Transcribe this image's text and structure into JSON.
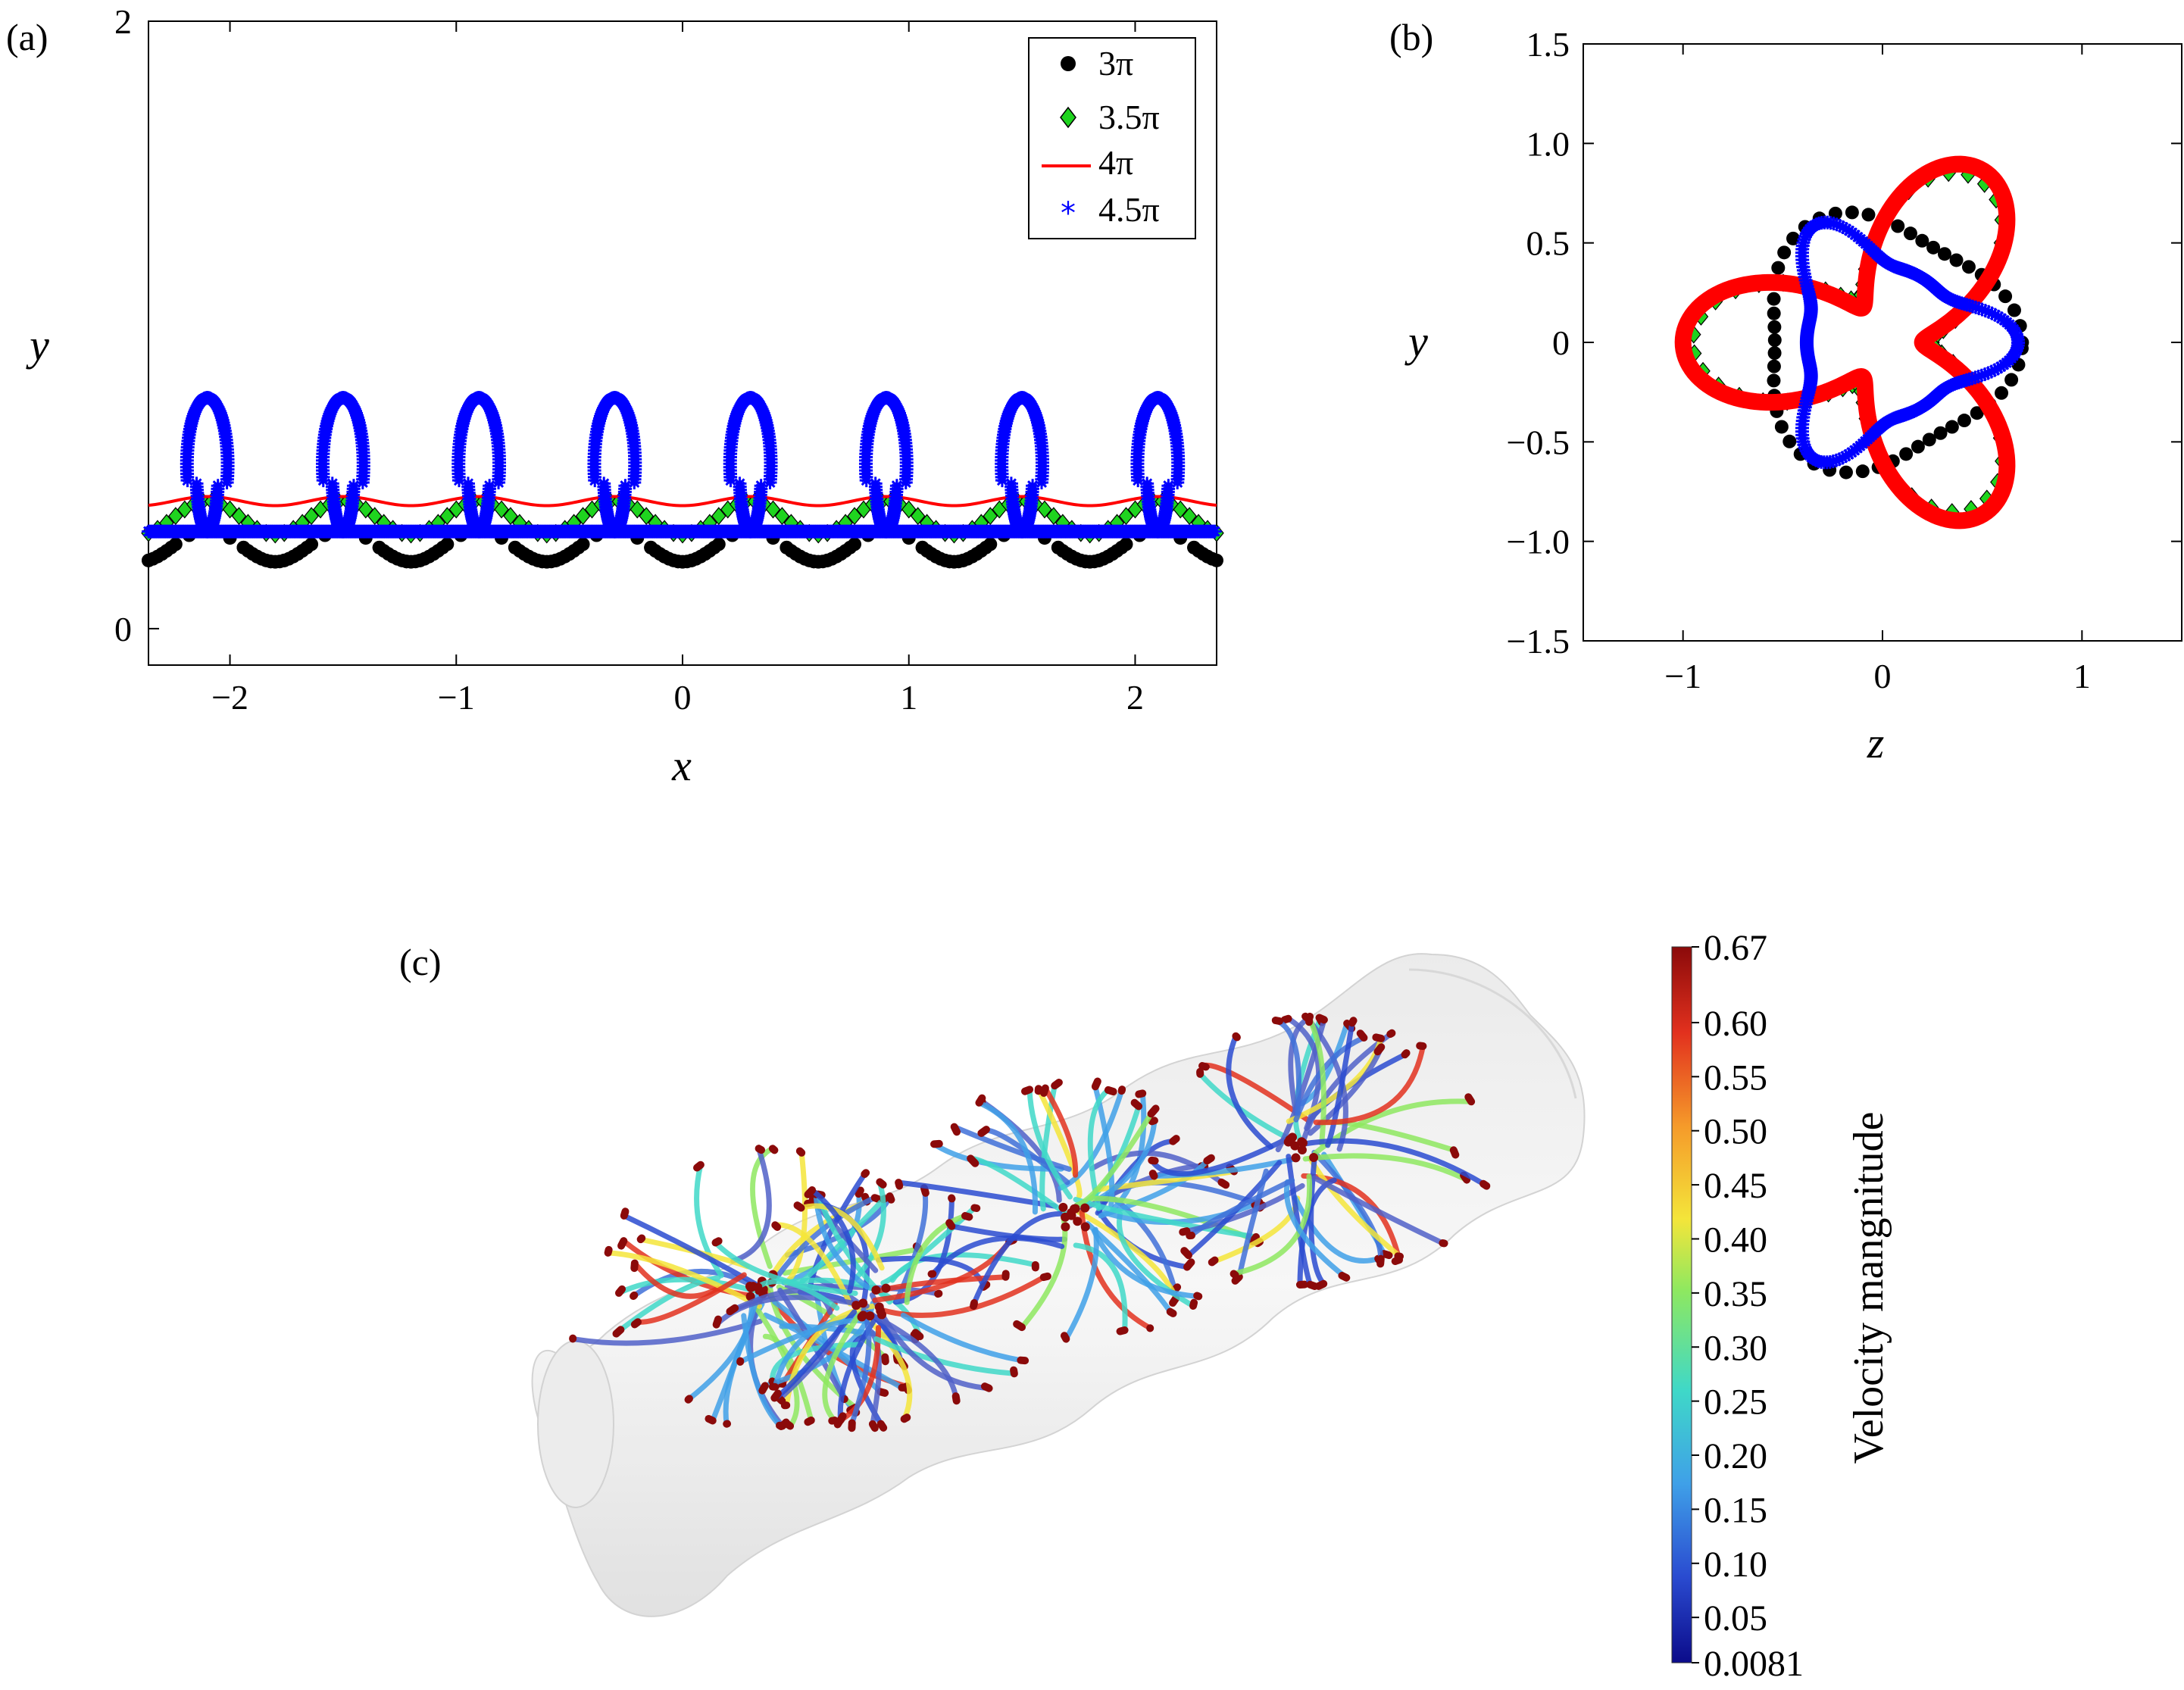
{
  "panels": {
    "a": {
      "label": "(a)"
    },
    "b": {
      "label": "(b)"
    },
    "c": {
      "label": "(c)"
    }
  },
  "chart_data": [
    {
      "id": "a",
      "type": "scatter",
      "title": "",
      "xlabel": "x",
      "ylabel": "y",
      "xlim": [
        -2.36,
        2.36
      ],
      "ylim": [
        -0.12,
        2.0
      ],
      "x_ticks": [
        -2,
        -1,
        0,
        1,
        2
      ],
      "x_tick_labels": [
        "−2",
        "−1",
        "0",
        "1",
        "2"
      ],
      "y_ticks": [
        0,
        2
      ],
      "y_tick_labels": [
        "0",
        "2"
      ],
      "grid": false,
      "legend_position": "top-right",
      "series": [
        {
          "name": "3π",
          "marker": "circle",
          "color": "#000000",
          "curve": "wave",
          "wavelength": 0.6,
          "base": 0.325,
          "amp_low": 0.22,
          "amp_high": 0.325
        },
        {
          "name": "3.5π",
          "marker": "diamond",
          "color": "#1fd41f",
          "curve": "wave",
          "wavelength": 0.6,
          "base": 0.36,
          "amp_low": 0.31,
          "amp_high": 0.42
        },
        {
          "name": "4π",
          "marker": "line",
          "color": "#ff0000",
          "curve": "wave",
          "wavelength": 0.6,
          "base": 0.42,
          "amp_low": 0.405,
          "amp_high": 0.435
        },
        {
          "name": "4.5π",
          "marker": "star",
          "color": "#0000ff",
          "curve": "loop",
          "wavelength": 0.6,
          "base": 0.32,
          "loop_top": 0.76,
          "loop_bottom": 0.48
        }
      ]
    },
    {
      "id": "b",
      "type": "scatter",
      "title": "",
      "xlabel": "z",
      "ylabel": "y",
      "xlim": [
        -1.5,
        1.5
      ],
      "ylim": [
        -1.5,
        1.5
      ],
      "x_ticks": [
        -1,
        0,
        1
      ],
      "x_tick_labels": [
        "−1",
        "0",
        "1"
      ],
      "y_ticks": [
        -1.5,
        -1.0,
        -0.5,
        0,
        0.5,
        1.0,
        1.5
      ],
      "y_tick_labels": [
        "−1.5",
        "−1.0",
        "−0.5",
        "0",
        "0.5",
        "1.0",
        "1.5"
      ],
      "grid": false,
      "series": [
        {
          "name": "3π",
          "marker": "circle",
          "color": "#000000",
          "shape": "trefoil",
          "r0": 0.62,
          "amp": 0.08,
          "phase_deg": 0
        },
        {
          "name": "3.5π",
          "marker": "diamond",
          "color": "#1fd41f",
          "shape": "trefoil",
          "r0": 0.6,
          "amp": 0.35,
          "phase_deg": 180
        },
        {
          "name": "4π",
          "marker": "line",
          "color": "#ff0000",
          "shape": "trefoil",
          "r0": 0.6,
          "amp": 0.4,
          "phase_deg": 180
        },
        {
          "name": "4.5π",
          "marker": "star",
          "color": "#0000ff",
          "shape": "lobes",
          "r0": 0.38,
          "amp": 0.3,
          "phase_deg": 0
        }
      ]
    }
  ],
  "colorbar": {
    "title": "Velocity mangnitude",
    "min": 0.0081,
    "max": 0.67,
    "tick_labels": [
      "0.67",
      "0.60",
      "0.55",
      "0.50",
      "0.45",
      "0.40",
      "0.35",
      "0.30",
      "0.25",
      "0.20",
      "0.15",
      "0.10",
      "0.05",
      "0.0081"
    ],
    "tick_values": [
      0.67,
      0.6,
      0.55,
      0.5,
      0.45,
      0.4,
      0.35,
      0.3,
      0.25,
      0.2,
      0.15,
      0.1,
      0.05,
      0.0081
    ],
    "colors": [
      "#0b0b8a",
      "#2a4bd0",
      "#3fa0e8",
      "#3fd8c8",
      "#8ee860",
      "#f4e53a",
      "#f59a2a",
      "#e2311e",
      "#8b0a0a"
    ]
  }
}
